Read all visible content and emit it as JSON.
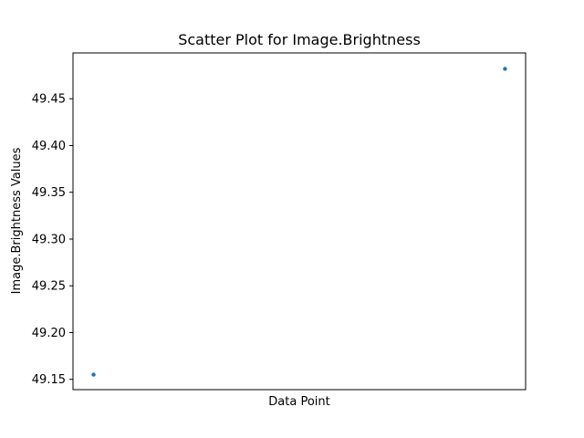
{
  "chart_data": {
    "type": "scatter",
    "title": "Scatter Plot for Image.Brightness",
    "xlabel": "Data Point",
    "ylabel": "Image.Brightness Values",
    "x": [
      0,
      1
    ],
    "y": [
      49.155,
      49.482
    ],
    "ylim": [
      49.139,
      49.499
    ],
    "xlim": [
      -0.05,
      1.05
    ],
    "yticks": [
      49.15,
      49.2,
      49.25,
      49.3,
      49.35,
      49.4,
      49.45
    ],
    "ytick_labels": [
      "49.15",
      "49.20",
      "49.25",
      "49.30",
      "49.35",
      "49.40",
      "49.45"
    ],
    "xticks_visible": false,
    "grid": false,
    "marker_color": "#1f77b4"
  }
}
